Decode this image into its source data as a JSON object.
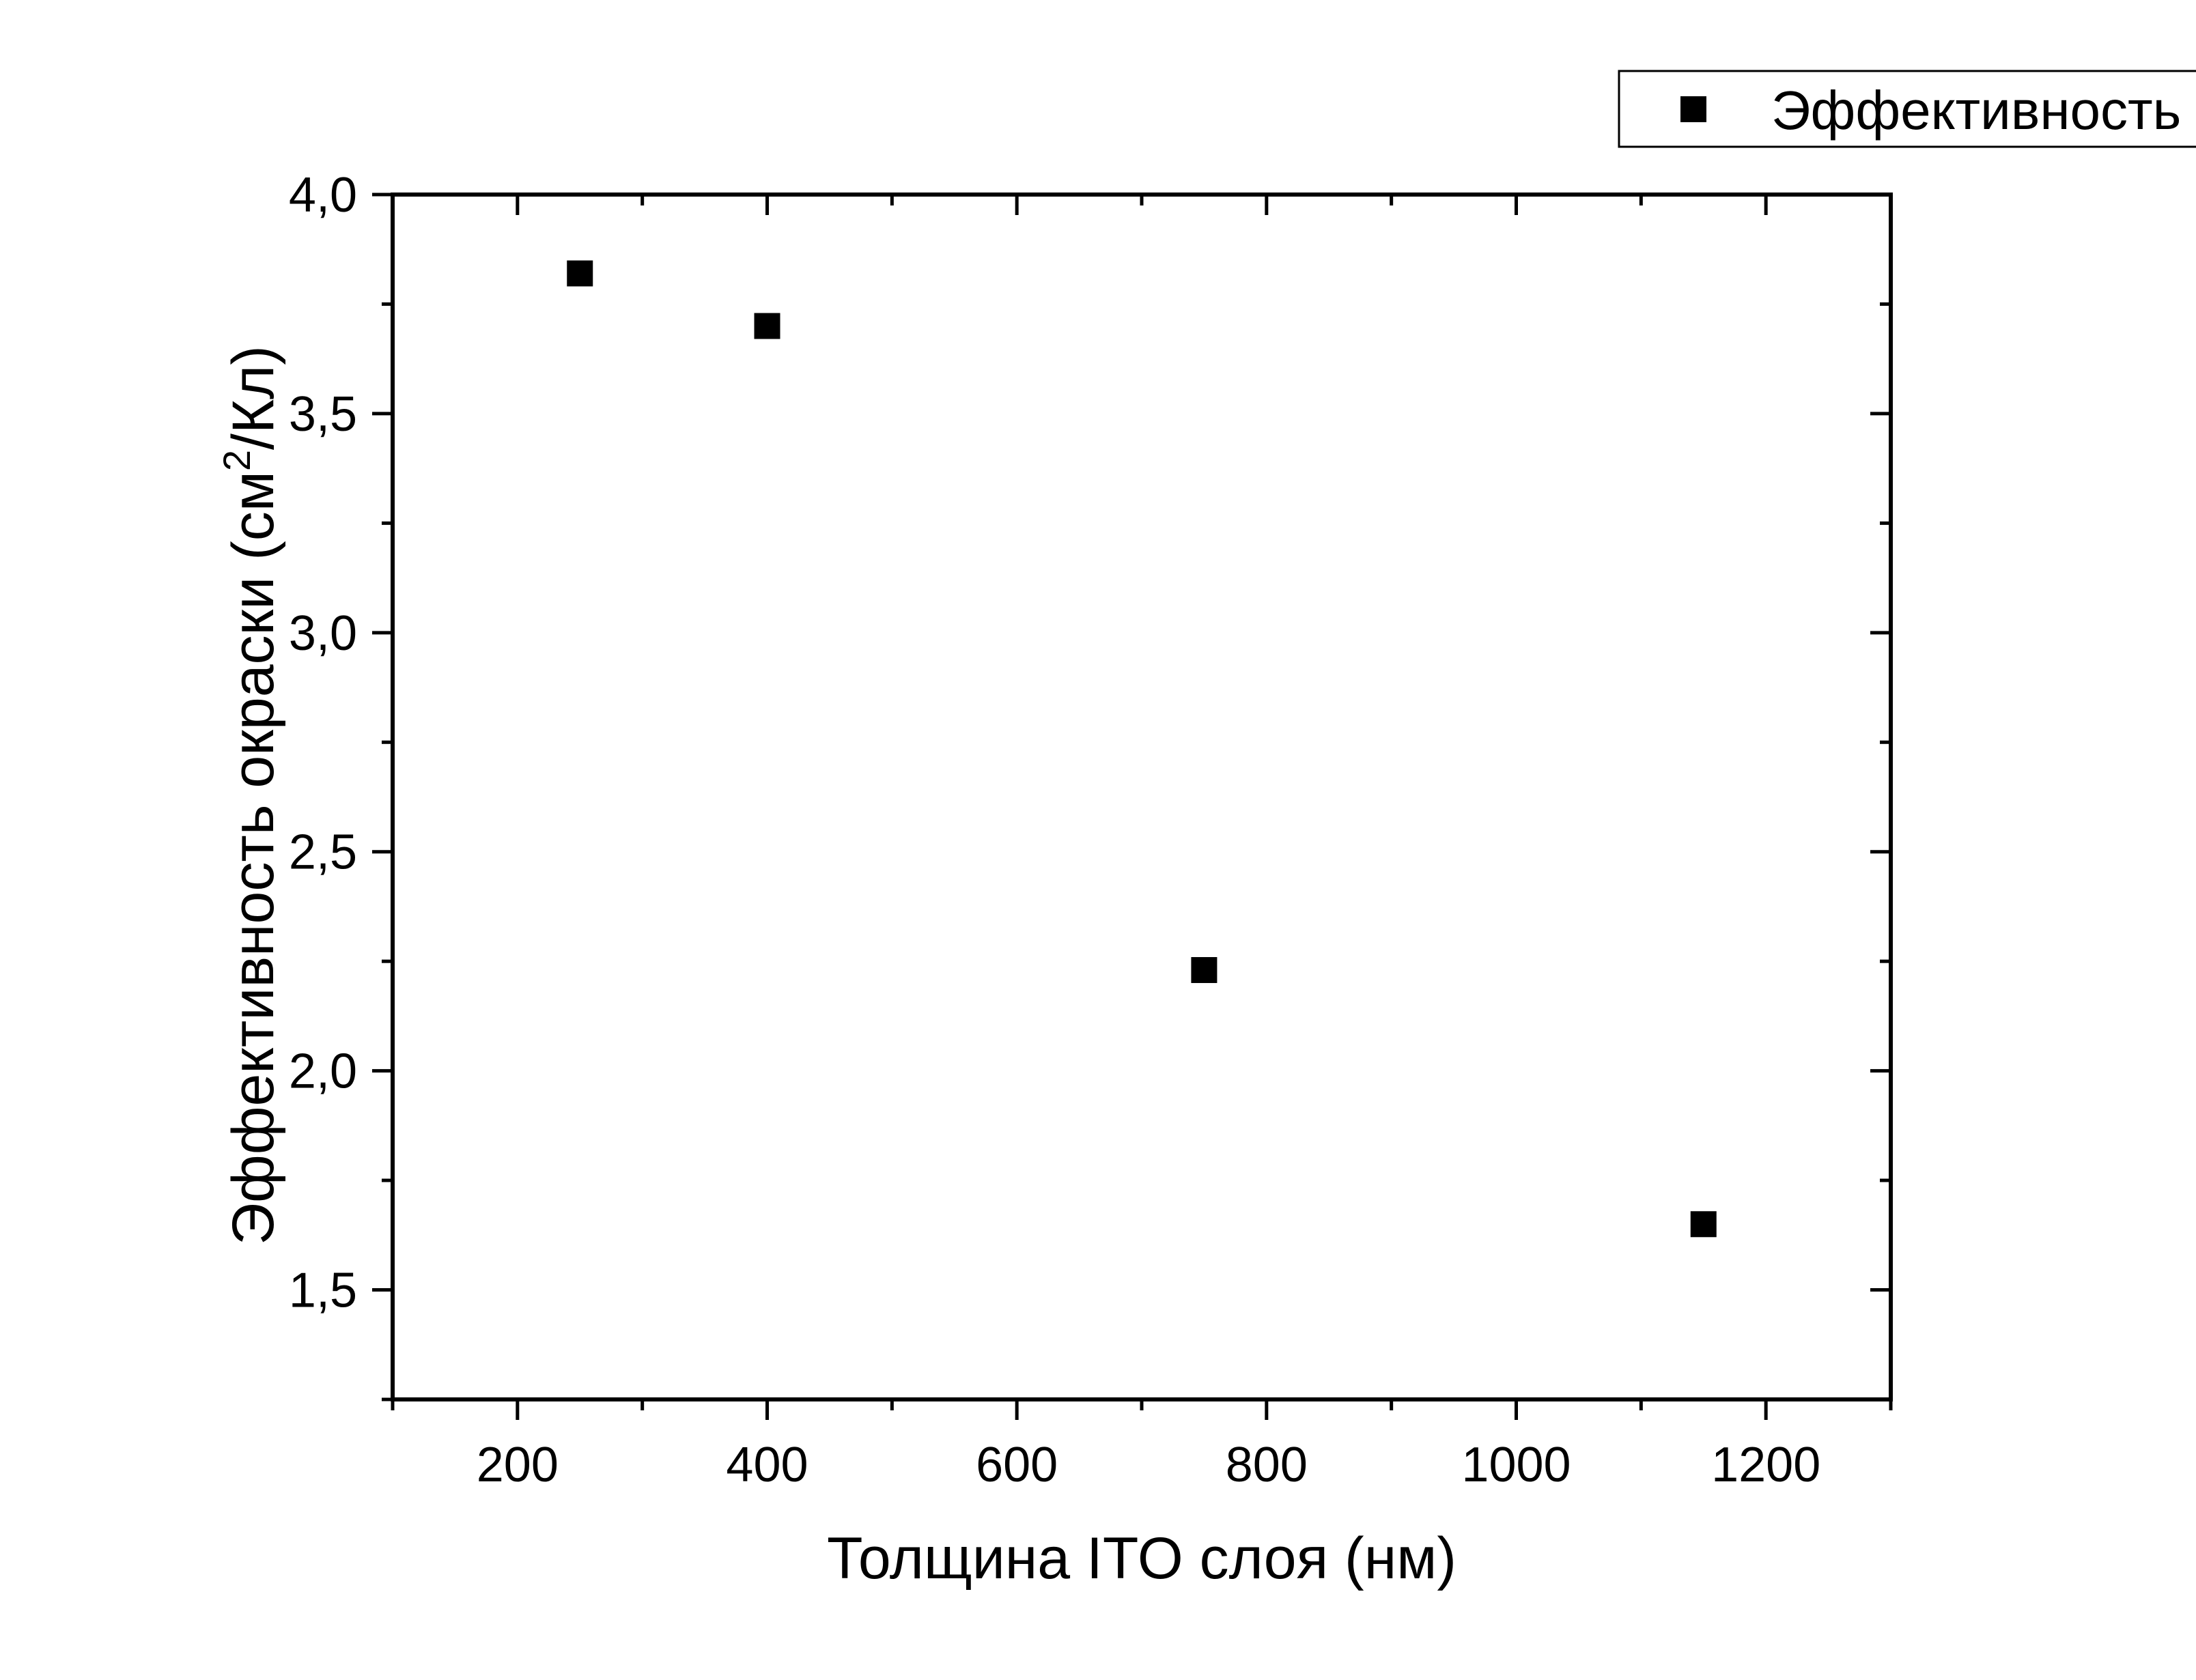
{
  "chart_data": {
    "type": "scatter",
    "title": "",
    "xlabel": "Толщина ITO слоя (нм)",
    "ylabel_main": "Эффективность окраски (см",
    "ylabel_sup": "2",
    "ylabel_tail": "/Кл)",
    "xlim": [
      100,
      1300
    ],
    "ylim": [
      1.25,
      4.0
    ],
    "x_ticks": [
      200,
      400,
      600,
      800,
      1000,
      1200
    ],
    "x_tick_labels": [
      "200",
      "400",
      "600",
      "800",
      "1000",
      "1200"
    ],
    "x_minor_ticks": [
      100,
      300,
      500,
      700,
      900,
      1100,
      1300
    ],
    "y_ticks": [
      1.5,
      2.0,
      2.5,
      3.0,
      3.5,
      4.0
    ],
    "y_tick_labels": [
      "1,5",
      "2,0",
      "2,5",
      "3,0",
      "3,5",
      "4,0"
    ],
    "y_minor_ticks": [
      1.25,
      1.75,
      2.25,
      2.75,
      3.25,
      3.75
    ],
    "grid": false,
    "legend_position": "top-right, outside plot",
    "series": [
      {
        "name": "Эффективность",
        "marker": "square",
        "color": "#000000",
        "x": [
          250,
          400,
          750,
          1150
        ],
        "y": [
          3.82,
          3.7,
          2.23,
          1.65
        ]
      }
    ]
  }
}
